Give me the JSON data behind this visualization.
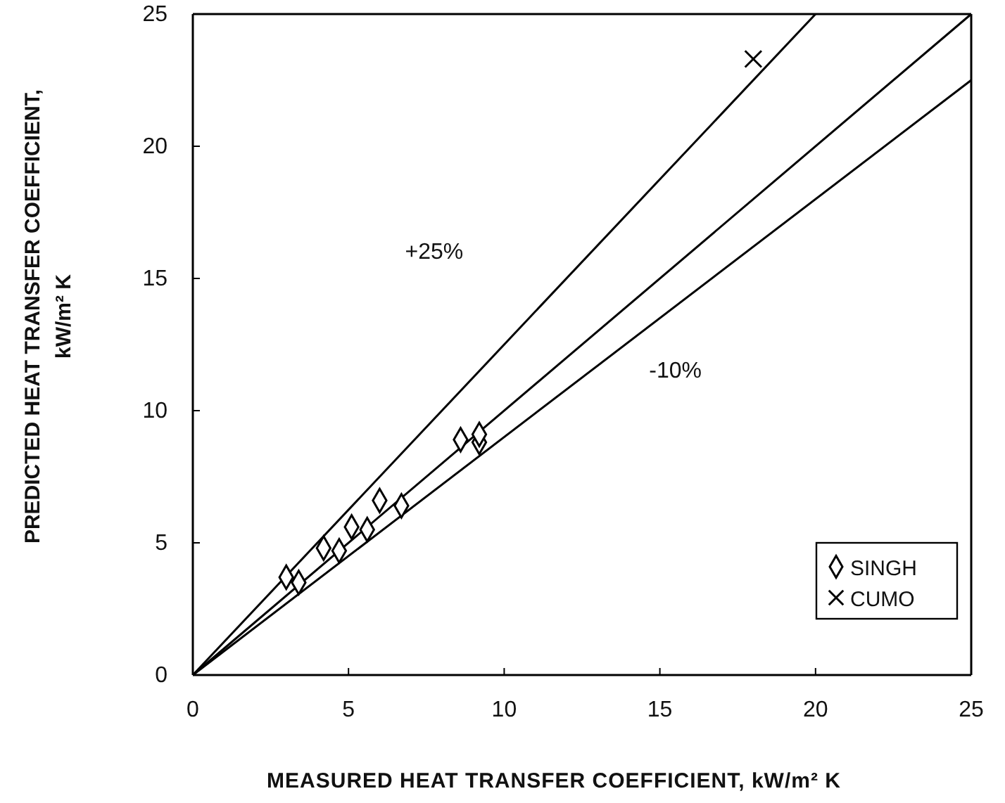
{
  "chart_data": {
    "type": "scatter",
    "xlabel": "MEASURED HEAT TRANSFER COEFFICIENT, kW/m² K",
    "ylabel": "PREDICTED HEAT TRANSFER COEFFICIENT,\nkW/m² K",
    "xlim": [
      0,
      25
    ],
    "ylim": [
      0,
      25
    ],
    "xticks": [
      0,
      5,
      10,
      15,
      20,
      25
    ],
    "yticks": [
      0,
      5,
      10,
      15,
      20,
      25
    ],
    "grid": false,
    "legend": "bottom right",
    "annotations": [
      "+25%",
      "-10%"
    ],
    "series": [
      {
        "type": "line",
        "color": "#000000",
        "marker": "none",
        "line_style": "solid",
        "x": [
          0,
          20
        ],
        "values": [
          0,
          25
        ]
      },
      {
        "type": "line",
        "color": "#000000",
        "marker": "none",
        "line_style": "solid",
        "x": [
          0,
          25
        ],
        "values": [
          0,
          25
        ]
      },
      {
        "type": "line",
        "color": "#000000",
        "marker": "none",
        "line_style": "solid",
        "x": [
          0,
          25
        ],
        "values": [
          0,
          22.5
        ]
      },
      {
        "name": "SINGH",
        "color": "#000000",
        "marker": "diamond",
        "x": [
          3.0,
          3.4,
          4.2,
          4.7,
          5.1,
          5.6,
          6.0,
          6.7,
          8.6,
          9.2,
          9.2
        ],
        "values": [
          3.7,
          3.5,
          4.8,
          4.7,
          5.6,
          5.5,
          6.6,
          6.4,
          8.9,
          8.8,
          9.1
        ]
      },
      {
        "name": "CUMO",
        "color": "#000000",
        "marker": "cross",
        "x": [
          18.0
        ],
        "values": [
          23.3
        ]
      }
    ]
  }
}
